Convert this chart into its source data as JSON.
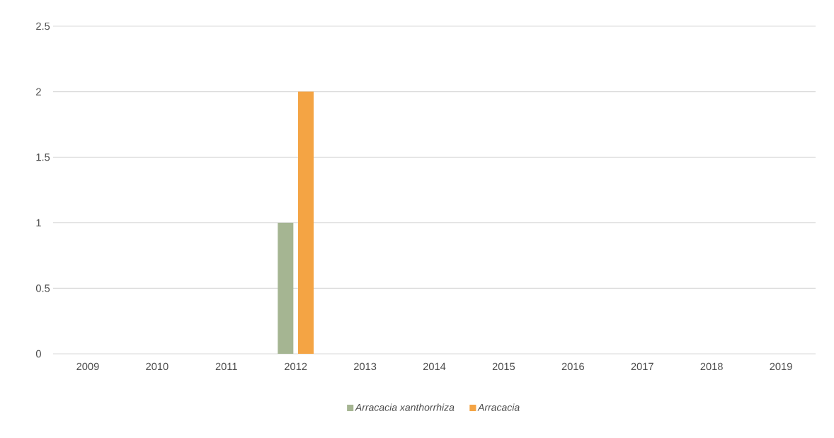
{
  "chart_data": {
    "type": "bar",
    "categories": [
      "2009",
      "2010",
      "2011",
      "2012",
      "2013",
      "2014",
      "2015",
      "2016",
      "2017",
      "2018",
      "2019"
    ],
    "series": [
      {
        "name": "Arracacia xanthorrhiza",
        "color": "#a5b592",
        "values": [
          0,
          0,
          0,
          1,
          0,
          0,
          0,
          0,
          0,
          0,
          0
        ]
      },
      {
        "name": "Arracacia",
        "color": "#f4a444",
        "values": [
          0,
          0,
          0,
          2,
          0,
          0,
          0,
          0,
          0,
          0,
          0
        ]
      }
    ],
    "ylim": [
      0,
      2.5
    ],
    "yticks": [
      0,
      0.5,
      1,
      1.5,
      2,
      2.5
    ],
    "grid": "y",
    "legend": "bottom"
  }
}
